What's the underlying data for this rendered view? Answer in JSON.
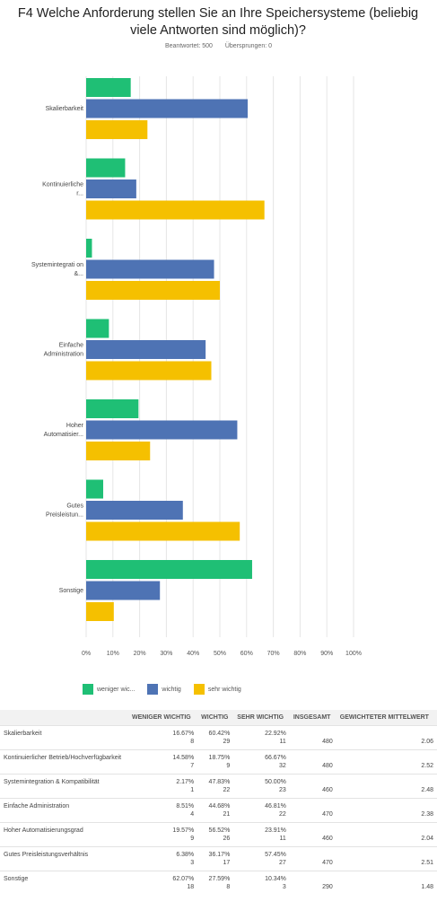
{
  "title": "F4 Welche Anforderung stellen Sie an Ihre Speichersysteme (beliebig viele Antworten sind möglich)?",
  "meta": {
    "answered": "Beantwortet: 500",
    "skipped": "Übersprungen: 0"
  },
  "chart_data": {
    "type": "bar",
    "orientation": "horizontal",
    "categories": [
      "Skalierbarkeit",
      "Kontinuierliche r...",
      "Systemintegrati on &...",
      "Einfache Administration",
      "Hoher Automatisier...",
      "Gutes Preisleistun...",
      "Sonstige"
    ],
    "series": [
      {
        "name": "weniger wic...",
        "color": "#1fbf75",
        "values": [
          16.67,
          14.58,
          2.17,
          8.51,
          19.57,
          6.38,
          62.07
        ]
      },
      {
        "name": "wichtig",
        "color": "#4e73b4",
        "values": [
          60.42,
          18.75,
          47.83,
          44.68,
          56.52,
          36.17,
          27.59
        ]
      },
      {
        "name": "sehr wichtig",
        "color": "#f5c000",
        "values": [
          22.92,
          66.67,
          50.0,
          46.81,
          23.91,
          57.45,
          10.34
        ]
      }
    ],
    "xlim": [
      0,
      100
    ],
    "xticks": [
      "0%",
      "10%",
      "20%",
      "30%",
      "40%",
      "50%",
      "60%",
      "70%",
      "80%",
      "90%",
      "100%"
    ],
    "grid": true,
    "legend": "bottom"
  },
  "table": {
    "headers": [
      "",
      "WENIGER WICHTIG",
      "WICHTIG",
      "SEHR WICHTIG",
      "INSGESAMT",
      "GEWICHTETER MITTELWERT"
    ],
    "rows": [
      {
        "label": "Skalierbarkeit",
        "cells": [
          [
            "16.67%",
            "8"
          ],
          [
            "60.42%",
            "29"
          ],
          [
            "22.92%",
            "11"
          ]
        ],
        "total": "480",
        "mean": "2.06"
      },
      {
        "label": "Kontinuierlicher Betrieb/Hochverfügbarkeit",
        "cells": [
          [
            "14.58%",
            "7"
          ],
          [
            "18.75%",
            "9"
          ],
          [
            "66.67%",
            "32"
          ]
        ],
        "total": "480",
        "mean": "2.52"
      },
      {
        "label": "Systemintegration & Kompatibilität",
        "cells": [
          [
            "2.17%",
            "1"
          ],
          [
            "47.83%",
            "22"
          ],
          [
            "50.00%",
            "23"
          ]
        ],
        "total": "460",
        "mean": "2.48"
      },
      {
        "label": "Einfache Administration",
        "cells": [
          [
            "8.51%",
            "4"
          ],
          [
            "44.68%",
            "21"
          ],
          [
            "46.81%",
            "22"
          ]
        ],
        "total": "470",
        "mean": "2.38"
      },
      {
        "label": "Hoher Automatisierungsgrad",
        "cells": [
          [
            "19.57%",
            "9"
          ],
          [
            "56.52%",
            "26"
          ],
          [
            "23.91%",
            "11"
          ]
        ],
        "total": "460",
        "mean": "2.04"
      },
      {
        "label": "Gutes Preisleistungsverhältnis",
        "cells": [
          [
            "6.38%",
            "3"
          ],
          [
            "36.17%",
            "17"
          ],
          [
            "57.45%",
            "27"
          ]
        ],
        "total": "470",
        "mean": "2.51"
      },
      {
        "label": "Sonstige",
        "cells": [
          [
            "62.07%",
            "18"
          ],
          [
            "27.59%",
            "8"
          ],
          [
            "10.34%",
            "3"
          ]
        ],
        "total": "290",
        "mean": "1.48"
      }
    ]
  }
}
